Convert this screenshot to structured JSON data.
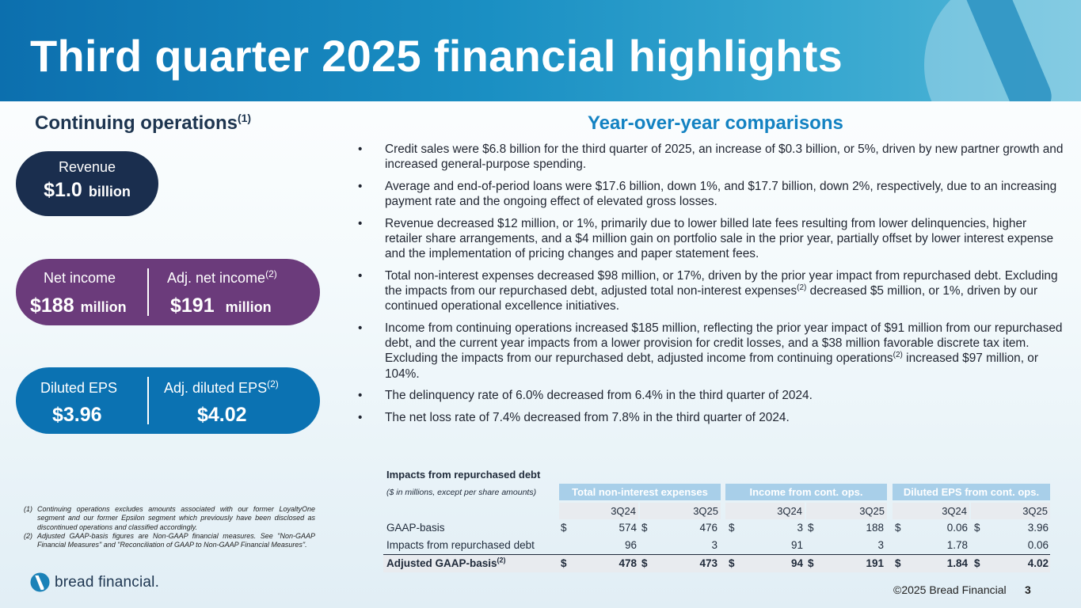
{
  "title": "Third quarter 2025 financial highlights",
  "left_heading": {
    "text": "Continuing operations",
    "sup": "(1)"
  },
  "right_heading": "Year-over-year comparisons",
  "revenue": {
    "label": "Revenue",
    "value": "$1.0",
    "unit": "billion"
  },
  "net_income": {
    "label": "Net income",
    "value": "$188",
    "unit": "million"
  },
  "adj_net_income": {
    "label": "Adj. net income",
    "sup": "(2)",
    "value": "$191",
    "unit": "million"
  },
  "diluted_eps": {
    "label": "Diluted EPS",
    "value": "$3.96"
  },
  "adj_diluted_eps": {
    "label": "Adj. diluted EPS",
    "sup": "(2)",
    "value": "$4.02"
  },
  "bullet_marker": "•",
  "bullets": [
    {
      "text": "Credit sales were $6.8 billion for the third quarter of 2025, an increase of $0.3 billion, or 5%, driven by new partner growth and increased general-purpose spending."
    },
    {
      "text": "Average and end-of-period loans were $17.6 billion, down 1%, and $17.7 billion, down 2%, respectively, due to an increasing payment rate and the ongoing effect of elevated gross losses."
    },
    {
      "text": "Revenue decreased $12 million, or 1%, primarily due to lower billed late fees resulting from lower delinquencies, higher retailer share arrangements, and a $4 million gain on portfolio sale in the prior year, partially offset by lower interest expense and the implementation of pricing changes and paper statement fees."
    },
    {
      "text_a": "Total non-interest expenses decreased $98 million, or 17%, driven by the prior year impact from repurchased debt.  Excluding the impacts from our repurchased debt, adjusted total non-interest expenses",
      "sup": "(2)",
      "text_b": " decreased $5 million, or 1%, driven by our continued operational excellence initiatives."
    },
    {
      "text_a": "Income from continuing operations increased $185 million, reflecting the prior year impact of $91 million from our repurchased debt, and the current year impacts from a lower provision for credit losses, and a $38 million favorable discrete tax item.  Excluding the impacts from our repurchased debt, adjusted income from continuing operations",
      "sup": "(2)",
      "text_b": " increased $97 million, or 104%."
    },
    {
      "text": "The delinquency rate of 6.0% decreased from 6.4% in the third quarter of 2024."
    },
    {
      "text": "The net loss rate of 7.4% decreased from 7.8% in the third quarter of 2024."
    }
  ],
  "table": {
    "title": "Impacts from repurchased debt",
    "subtitle": "($ in millions, except per share amounts)",
    "groups": [
      "Total non-interest expenses",
      "Income from cont. ops.",
      "Diluted EPS from cont. ops."
    ],
    "periods": [
      "3Q24",
      "3Q25",
      "3Q24",
      "3Q25",
      "3Q24",
      "3Q25"
    ],
    "currency_symbol": "$",
    "rows": [
      {
        "label": "GAAP-basis",
        "values": [
          "574",
          "476",
          "3",
          "188",
          "0.06",
          "3.96"
        ]
      },
      {
        "label": "Impacts from repurchased debt",
        "values": [
          "96",
          "3",
          "91",
          "3",
          "1.78",
          "0.06"
        ]
      },
      {
        "label": "Adjusted GAAP-basis",
        "sup": "(2)",
        "values": [
          "478",
          "473",
          "94",
          "191",
          "1.84",
          "4.02"
        ]
      }
    ]
  },
  "footnotes": [
    {
      "num": "(1)",
      "text": "Continuing operations excludes amounts associated with our former LoyaltyOne segment and our former Epsilon segment which previously have been disclosed as discontinued operations and classified accordingly."
    },
    {
      "num": "(2)",
      "text": "Adjusted GAAP-basis figures are Non-GAAP financial measures.  See \"Non-GAAP Financial Measures\" and \"Reconciliation of GAAP to Non-GAAP Financial Measures\"."
    }
  ],
  "brand": {
    "name": "bread financial",
    "trademark": "."
  },
  "copyright": "©2025 Bread Financial",
  "page_number": "3",
  "colors": {
    "header_blue": "#0c6fae",
    "navy": "#1a2e4e",
    "purple": "#6b3b7b",
    "blue": "#0b72b2",
    "accent_blue": "#1382c2",
    "table_header": "#a8cfe9"
  }
}
